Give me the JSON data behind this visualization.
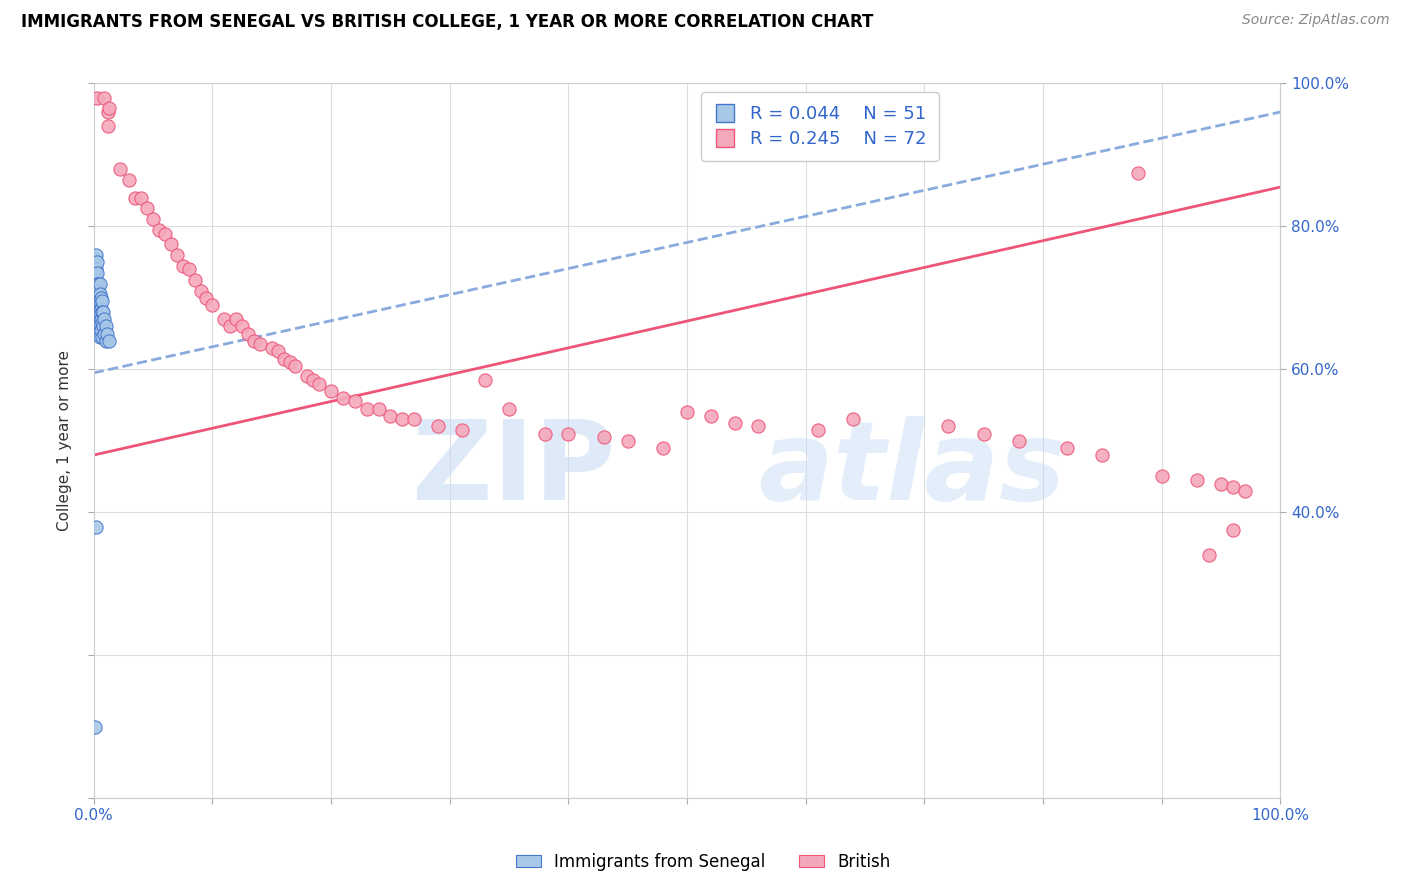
{
  "title": "IMMIGRANTS FROM SENEGAL VS BRITISH COLLEGE, 1 YEAR OR MORE CORRELATION CHART",
  "source": "Source: ZipAtlas.com",
  "ylabel": "College, 1 year or more",
  "legend_label1": "Immigrants from Senegal",
  "legend_label2": "British",
  "r1": 0.044,
  "n1": 51,
  "r2": 0.245,
  "n2": 72,
  "color_blue": "#a8c8e8",
  "color_pink": "#f4a8bc",
  "color_blue_line": "#4477cc",
  "color_pink_line": "#ee5577",
  "color_blue_text": "#3366cc",
  "color_pink_text": "#ee5577",
  "trendline1_color": "#88aadd",
  "trendline2_color": "#ee5577",
  "blue_x": [
    0.001,
    0.001,
    0.001,
    0.001,
    0.002,
    0.002,
    0.002,
    0.002,
    0.002,
    0.002,
    0.002,
    0.002,
    0.002,
    0.003,
    0.003,
    0.003,
    0.003,
    0.003,
    0.003,
    0.003,
    0.003,
    0.003,
    0.004,
    0.004,
    0.004,
    0.004,
    0.004,
    0.005,
    0.005,
    0.005,
    0.005,
    0.005,
    0.005,
    0.006,
    0.006,
    0.006,
    0.006,
    0.007,
    0.007,
    0.007,
    0.007,
    0.008,
    0.008,
    0.009,
    0.009,
    0.01,
    0.01,
    0.011,
    0.013,
    0.002,
    0.001
  ],
  "blue_y": [
    0.755,
    0.73,
    0.72,
    0.7,
    0.76,
    0.74,
    0.725,
    0.715,
    0.705,
    0.695,
    0.685,
    0.675,
    0.66,
    0.75,
    0.735,
    0.72,
    0.71,
    0.7,
    0.69,
    0.68,
    0.665,
    0.65,
    0.72,
    0.71,
    0.695,
    0.68,
    0.665,
    0.72,
    0.705,
    0.695,
    0.68,
    0.665,
    0.645,
    0.7,
    0.685,
    0.67,
    0.655,
    0.695,
    0.68,
    0.665,
    0.645,
    0.68,
    0.66,
    0.67,
    0.65,
    0.66,
    0.64,
    0.65,
    0.64,
    0.38,
    0.1
  ],
  "pink_x": [
    0.003,
    0.009,
    0.012,
    0.012,
    0.013,
    0.022,
    0.03,
    0.035,
    0.04,
    0.045,
    0.05,
    0.055,
    0.06,
    0.065,
    0.07,
    0.075,
    0.08,
    0.085,
    0.09,
    0.095,
    0.1,
    0.11,
    0.115,
    0.12,
    0.125,
    0.13,
    0.135,
    0.14,
    0.15,
    0.155,
    0.16,
    0.165,
    0.17,
    0.18,
    0.185,
    0.19,
    0.2,
    0.21,
    0.22,
    0.23,
    0.24,
    0.25,
    0.26,
    0.27,
    0.29,
    0.31,
    0.33,
    0.35,
    0.38,
    0.4,
    0.43,
    0.45,
    0.48,
    0.5,
    0.52,
    0.54,
    0.56,
    0.61,
    0.64,
    0.72,
    0.75,
    0.78,
    0.82,
    0.85,
    0.88,
    0.9,
    0.93,
    0.95,
    0.96,
    0.97,
    0.94,
    0.96
  ],
  "pink_y": [
    0.98,
    0.98,
    0.96,
    0.94,
    0.965,
    0.88,
    0.865,
    0.84,
    0.84,
    0.825,
    0.81,
    0.795,
    0.79,
    0.775,
    0.76,
    0.745,
    0.74,
    0.725,
    0.71,
    0.7,
    0.69,
    0.67,
    0.66,
    0.67,
    0.66,
    0.65,
    0.64,
    0.635,
    0.63,
    0.625,
    0.615,
    0.61,
    0.605,
    0.59,
    0.585,
    0.58,
    0.57,
    0.56,
    0.555,
    0.545,
    0.545,
    0.535,
    0.53,
    0.53,
    0.52,
    0.515,
    0.585,
    0.545,
    0.51,
    0.51,
    0.505,
    0.5,
    0.49,
    0.54,
    0.535,
    0.525,
    0.52,
    0.515,
    0.53,
    0.52,
    0.51,
    0.5,
    0.49,
    0.48,
    0.875,
    0.45,
    0.445,
    0.44,
    0.435,
    0.43,
    0.34,
    0.375
  ],
  "blue_trend_x0": 0.0,
  "blue_trend_x1": 1.0,
  "blue_trend_y0": 0.595,
  "blue_trend_y1": 0.96,
  "pink_trend_x0": 0.0,
  "pink_trend_x1": 1.0,
  "pink_trend_y0": 0.48,
  "pink_trend_y1": 0.855,
  "xlim": [
    0,
    1.0
  ],
  "ylim": [
    0,
    1.0
  ],
  "x_ticks": [
    0.0,
    0.1,
    0.2,
    0.3,
    0.4,
    0.5,
    0.6,
    0.7,
    0.8,
    0.9,
    1.0
  ],
  "y_ticks": [
    0.0,
    0.2,
    0.4,
    0.6,
    0.8,
    1.0
  ],
  "right_y_ticks": [
    0.4,
    0.6,
    0.8,
    1.0
  ],
  "right_y_labels": [
    "40.0%",
    "60.0%",
    "80.0%",
    "100.0%"
  ]
}
